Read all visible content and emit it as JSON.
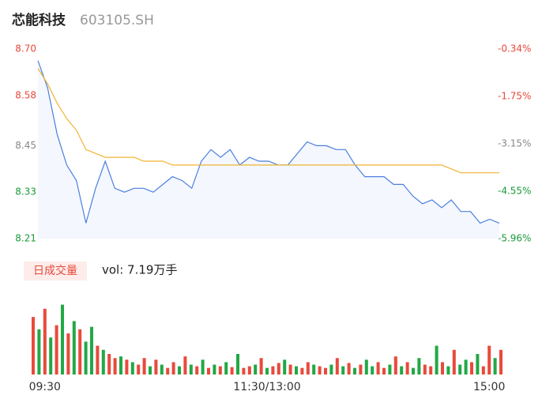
{
  "chart_data": [
    {
      "type": "line",
      "title": "芯能科技",
      "subtitle": "603105.SH",
      "x": [
        0,
        5,
        10,
        15,
        20,
        25,
        30,
        35,
        40,
        45,
        50,
        55,
        60,
        65,
        70,
        75,
        80,
        85,
        90,
        95,
        100,
        105,
        110,
        115,
        120,
        125,
        130,
        135,
        140,
        145,
        150,
        155,
        160,
        165,
        170,
        175,
        180,
        185,
        190,
        195,
        200,
        205,
        210,
        215,
        220,
        225,
        230,
        235,
        240
      ],
      "xlim": [
        0,
        240
      ],
      "series": [
        {
          "color": "#4a7fe0",
          "values": [
            8.67,
            8.6,
            8.48,
            8.4,
            8.36,
            8.25,
            8.34,
            8.41,
            8.34,
            8.33,
            8.34,
            8.34,
            8.33,
            8.35,
            8.37,
            8.36,
            8.34,
            8.41,
            8.44,
            8.42,
            8.44,
            8.4,
            8.42,
            8.41,
            8.41,
            8.4,
            8.4,
            8.43,
            8.46,
            8.45,
            8.45,
            8.44,
            8.44,
            8.4,
            8.37,
            8.37,
            8.37,
            8.35,
            8.35,
            8.32,
            8.3,
            8.31,
            8.29,
            8.31,
            8.28,
            8.28,
            8.25,
            8.26,
            8.25
          ]
        },
        {
          "color": "#f0b430",
          "values": [
            8.65,
            8.61,
            8.56,
            8.52,
            8.49,
            8.44,
            8.43,
            8.42,
            8.42,
            8.42,
            8.42,
            8.41,
            8.41,
            8.41,
            8.4,
            8.4,
            8.4,
            8.4,
            8.4,
            8.4,
            8.4,
            8.4,
            8.4,
            8.4,
            8.4,
            8.4,
            8.4,
            8.4,
            8.4,
            8.4,
            8.4,
            8.4,
            8.4,
            8.4,
            8.4,
            8.4,
            8.4,
            8.4,
            8.4,
            8.4,
            8.4,
            8.4,
            8.4,
            8.39,
            8.38,
            8.38,
            8.38,
            8.38,
            8.38
          ]
        }
      ],
      "ylim": [
        8.21,
        8.7
      ],
      "yticks": [
        {
          "value": 8.7,
          "label": "8.70"
        },
        {
          "value": 8.58,
          "label": "8.58"
        },
        8.45,
        8.33,
        8.21
      ],
      "ytick_colors": [
        "#e8483b",
        "#e8483b",
        "#888888",
        "#1a9a3a",
        "#1a9a3a"
      ],
      "y2lim": [
        -5.96,
        -0.34
      ],
      "y2ticks": [
        {
          "value": -0.34,
          "label": "-0.34%"
        },
        {
          "value": -1.75,
          "label": "-1.75%"
        },
        {
          "value": -3.15,
          "label": "-3.15%"
        },
        {
          "value": -4.55,
          "label": "-4.55%"
        },
        {
          "value": -5.96,
          "label": "-5.96%"
        }
      ],
      "area_color": "#f4f7fd",
      "grid": false
    },
    {
      "type": "bar",
      "title": "日成交量",
      "annotation": "vol: 7.19万手",
      "x": [
        0,
        3,
        6,
        9,
        12,
        15,
        18,
        21,
        24,
        27,
        30,
        33,
        36,
        39,
        42,
        45,
        48,
        51,
        54,
        57,
        60,
        63,
        66,
        69,
        72,
        75,
        78,
        81,
        84,
        87,
        90,
        93,
        96,
        99,
        102,
        105,
        108,
        111,
        114,
        117,
        120,
        123,
        126,
        129,
        132,
        135,
        138,
        141,
        144,
        147,
        150,
        153,
        156,
        159,
        162,
        165,
        168,
        171,
        174,
        177,
        180,
        183,
        186,
        189,
        192,
        195,
        198,
        201,
        204,
        207,
        210,
        213,
        216,
        219,
        222,
        225,
        228,
        231,
        234,
        237,
        240
      ],
      "xlim": [
        0,
        240
      ],
      "xticks": [
        {
          "value": 6,
          "label": "09:30"
        },
        {
          "value": 120,
          "label": "11:30/13:00"
        },
        {
          "value": 234,
          "label": "15:00"
        }
      ],
      "values": [
        70,
        55,
        80,
        45,
        60,
        85,
        50,
        65,
        55,
        40,
        58,
        35,
        30,
        25,
        20,
        22,
        18,
        15,
        12,
        20,
        10,
        18,
        12,
        8,
        15,
        10,
        22,
        12,
        10,
        18,
        8,
        12,
        10,
        15,
        9,
        25,
        8,
        10,
        12,
        20,
        8,
        10,
        14,
        18,
        12,
        10,
        8,
        15,
        12,
        10,
        8,
        12,
        20,
        10,
        14,
        8,
        12,
        18,
        10,
        15,
        8,
        12,
        22,
        10,
        15,
        8,
        20,
        12,
        10,
        35,
        15,
        10,
        30,
        12,
        18,
        15,
        25,
        10,
        35,
        20,
        30
      ],
      "colors": [
        "#e84a3c",
        "#22a845",
        "#e84a3c",
        "#22a845",
        "#e84a3c",
        "#22a845",
        "#e84a3c",
        "#22a845",
        "#e84a3c",
        "#22a845",
        "#22a845",
        "#e84a3c",
        "#22a845",
        "#e84a3c",
        "#e84a3c",
        "#22a845",
        "#e84a3c",
        "#22a845",
        "#e84a3c",
        "#e84a3c",
        "#22a845",
        "#e84a3c",
        "#22a845",
        "#e84a3c",
        "#e84a3c",
        "#22a845",
        "#e84a3c",
        "#22a845",
        "#e84a3c",
        "#22a845",
        "#e84a3c",
        "#22a845",
        "#e84a3c",
        "#22a845",
        "#e84a3c",
        "#22a845",
        "#e84a3c",
        "#e84a3c",
        "#22a845",
        "#e84a3c",
        "#22a845",
        "#e84a3c",
        "#e84a3c",
        "#22a845",
        "#e84a3c",
        "#22a845",
        "#e84a3c",
        "#e84a3c",
        "#22a845",
        "#e84a3c",
        "#e84a3c",
        "#22a845",
        "#e84a3c",
        "#22a845",
        "#e84a3c",
        "#22a845",
        "#e84a3c",
        "#22a845",
        "#22a845",
        "#e84a3c",
        "#e84a3c",
        "#22a845",
        "#e84a3c",
        "#22a845",
        "#e84a3c",
        "#22a845",
        "#22a845",
        "#e84a3c",
        "#e84a3c",
        "#22a845",
        "#e84a3c",
        "#22a845",
        "#e84a3c",
        "#22a845",
        "#22a845",
        "#e84a3c",
        "#22a845",
        "#e84a3c",
        "#e84a3c",
        "#22a845",
        "#e84a3c"
      ],
      "ylim": [
        0,
        100
      ]
    }
  ]
}
